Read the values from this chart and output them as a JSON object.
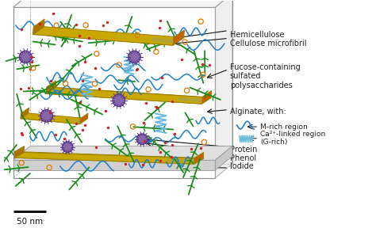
{
  "background_color": "#ffffff",
  "scale_bar_text": "50 nm",
  "labels": {
    "hemicellulose": "Hemicellulose\nCellulose microfibril",
    "fucose": "Fucose-containing\nsulfated\npolysaccharides",
    "alginate": "Alginate, with:",
    "m_rich": "M-rich region",
    "ca_linked": "Ca²⁺-linked region\n(G-rich)",
    "protein": "Protein\nPhenol",
    "iodide": "Iodide"
  },
  "figsize": [
    4.74,
    2.88
  ],
  "dpi": 100
}
